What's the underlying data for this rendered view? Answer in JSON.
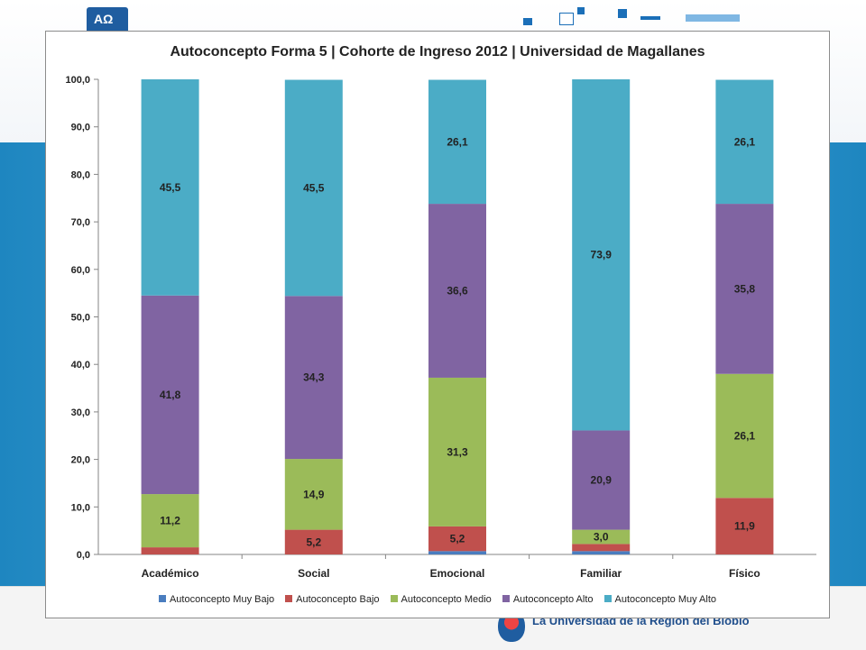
{
  "chart_data": {
    "type": "bar",
    "stacked": true,
    "title": "Autoconcepto Forma 5 | Cohorte de Ingreso 2012 | Universidad de Magallanes",
    "xlabel": "",
    "ylabel": "",
    "ylim": [
      0,
      100
    ],
    "yticks": [
      "0,0",
      "10,0",
      "20,0",
      "30,0",
      "40,0",
      "50,0",
      "60,0",
      "70,0",
      "80,0",
      "90,0",
      "100,0"
    ],
    "categories": [
      "Académico",
      "Social",
      "Emocional",
      "Familiar",
      "Físico"
    ],
    "legend_position": "bottom",
    "grid": false,
    "series": [
      {
        "name": "Autoconcepto Muy Bajo",
        "color": "#4a7dbf",
        "values": [
          0,
          0,
          0.7,
          0.7,
          0
        ],
        "labels": [
          "",
          "",
          "",
          "",
          ""
        ]
      },
      {
        "name": "Autoconcepto Bajo",
        "color": "#c0504d",
        "values": [
          1.5,
          5.2,
          5.2,
          1.5,
          11.9
        ],
        "labels": [
          "",
          "5,2",
          "5,2",
          "",
          "11,9"
        ]
      },
      {
        "name": "Autoconcepto Medio",
        "color": "#9bbb59",
        "values": [
          11.2,
          14.9,
          31.3,
          3.0,
          26.1
        ],
        "labels": [
          "11,2",
          "14,9",
          "31,3",
          "3,0",
          "26,1"
        ]
      },
      {
        "name": "Autoconcepto Alto",
        "color": "#8064a2",
        "values": [
          41.8,
          34.3,
          36.6,
          20.9,
          35.8
        ],
        "labels": [
          "41,8",
          "34,3",
          "36,6",
          "20,9",
          "35,8"
        ]
      },
      {
        "name": "Autoconcepto Muy Alto",
        "color": "#4bacc6",
        "values": [
          45.5,
          45.5,
          26.1,
          73.9,
          26.1
        ],
        "labels": [
          "45,5",
          "45,5",
          "26,1",
          "73,9",
          "26,1"
        ]
      }
    ]
  },
  "footer": {
    "university_name": "La Universidad de la Región del Biobío"
  }
}
